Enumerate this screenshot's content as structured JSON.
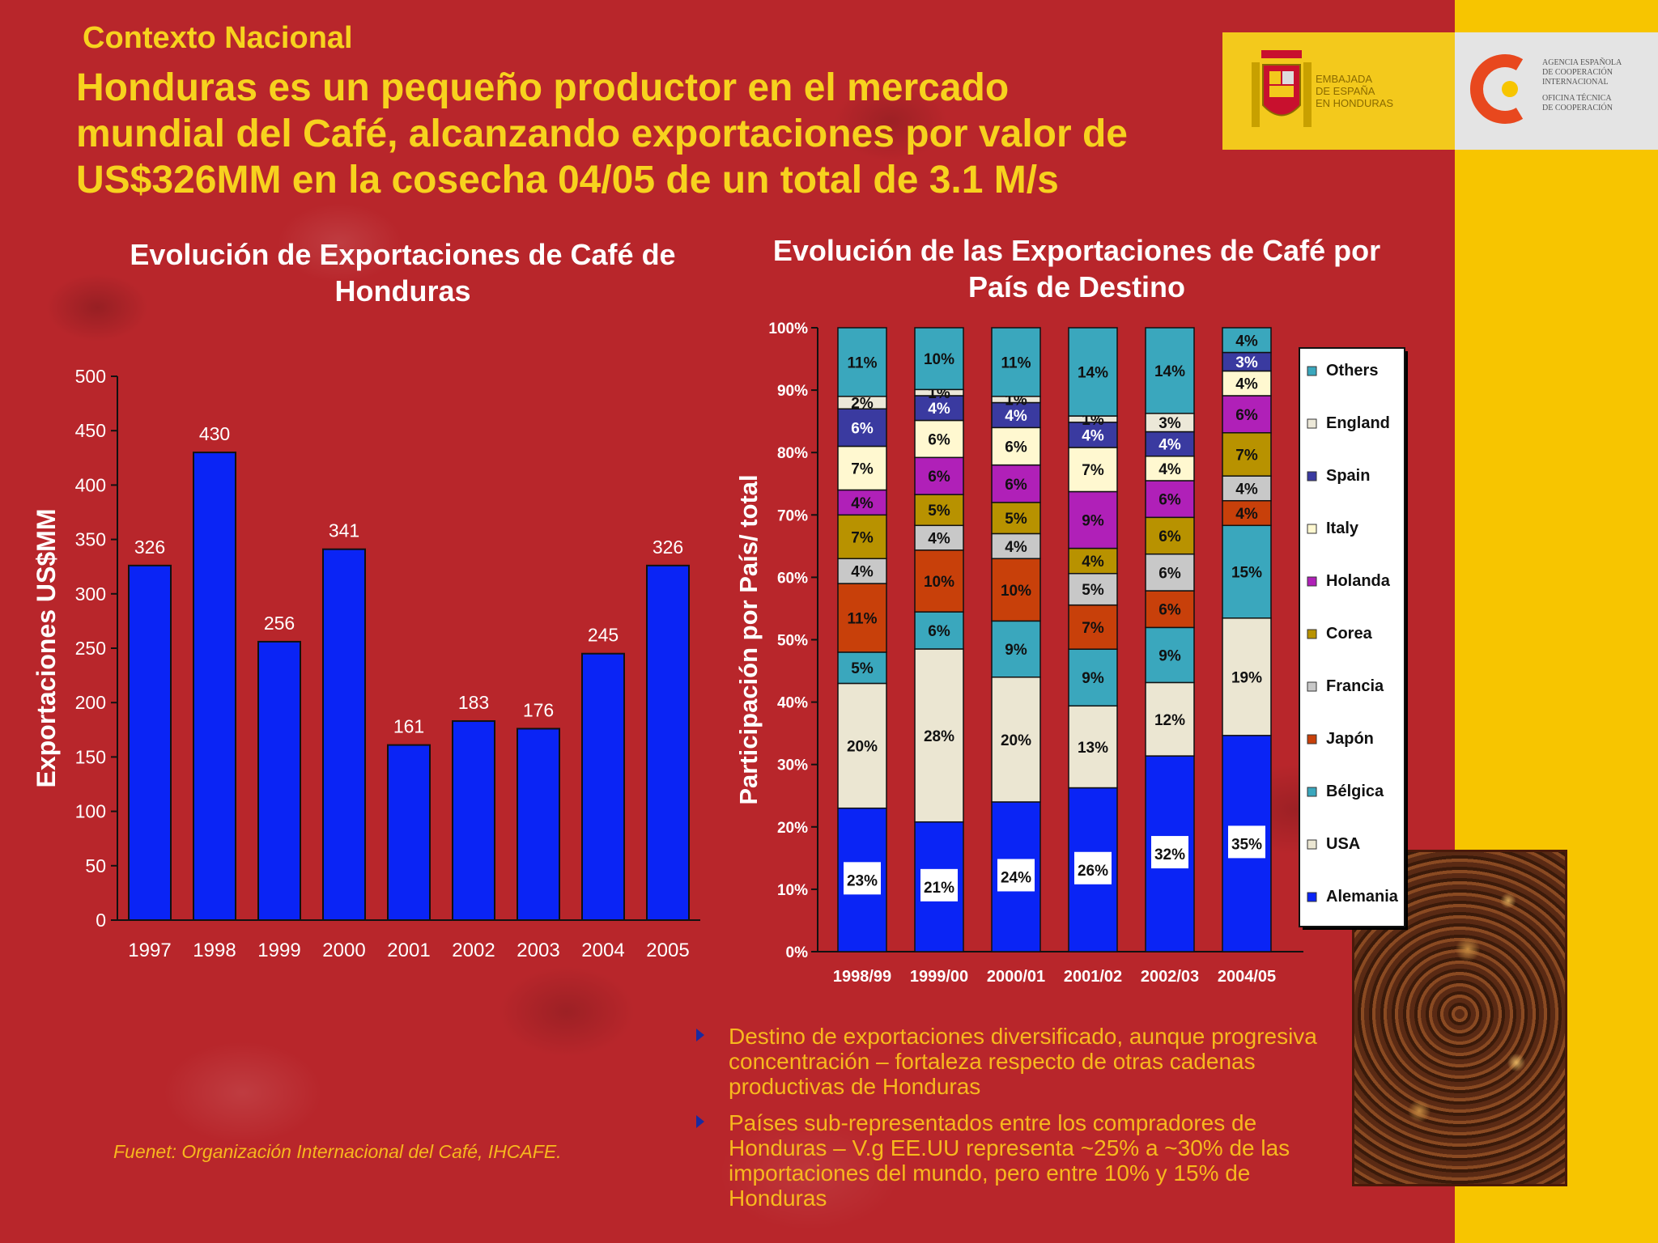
{
  "section_label": "Contexto Nacional",
  "headline": [
    "Honduras es un pequeño productor en el mercado",
    "mundial del Café, alcanzando exportaciones por valor de",
    "US$326MM en la cosecha 04/05 de un total de 3.1 M/s"
  ],
  "logos": {
    "embassy": [
      "EMBAJADA",
      "DE ESPAÑA",
      "EN HONDURAS"
    ],
    "aeci": [
      "AGENCIA ESPAÑOLA",
      "DE COOPERACIÓN",
      "INTERNACIONAL",
      "OFICINA TÉCNICA",
      "DE COOPERACIÓN"
    ]
  },
  "chart_data": [
    {
      "type": "bar",
      "title": "Evolución de Exportaciones de Café de Honduras",
      "xlabel": "",
      "ylabel": "Exportaciones US$MM",
      "ylim": [
        0,
        500
      ],
      "yticks": [
        0,
        50,
        100,
        150,
        200,
        250,
        300,
        350,
        400,
        450,
        500
      ],
      "categories": [
        "1997",
        "1998",
        "1999",
        "2000",
        "2001",
        "2002",
        "2003",
        "2004",
        "2005"
      ],
      "values": [
        326,
        430,
        256,
        341,
        161,
        183,
        176,
        245,
        326
      ],
      "bar_color": "#0a24f5"
    },
    {
      "type": "bar",
      "stacked": true,
      "title": "Evolución de las Exportaciones de Café por País de Destino",
      "ylabel": "Participación por País/ total",
      "ylim": [
        0,
        100
      ],
      "yticks": [
        "0%",
        "10%",
        "20%",
        "30%",
        "40%",
        "50%",
        "60%",
        "70%",
        "80%",
        "90%",
        "100%"
      ],
      "categories": [
        "1998/99",
        "1999/00",
        "2000/01",
        "2001/02",
        "2002/03",
        "2004/05"
      ],
      "legend_position": "right",
      "series": [
        {
          "name": "Alemania",
          "color": "#0a24f5",
          "values": [
            23,
            21,
            24,
            26,
            32,
            35
          ]
        },
        {
          "name": "USA",
          "color": "#ebe6d2",
          "values": [
            20,
            28,
            20,
            13,
            12,
            19
          ]
        },
        {
          "name": "Bélgica",
          "color": "#3aa7bd",
          "values": [
            5,
            6,
            9,
            9,
            9,
            15
          ]
        },
        {
          "name": "Japón",
          "color": "#c8400a",
          "values": [
            11,
            10,
            10,
            7,
            6,
            4
          ]
        },
        {
          "name": "Francia",
          "color": "#c8c8c8",
          "values": [
            4,
            4,
            4,
            5,
            6,
            4
          ]
        },
        {
          "name": "Corea",
          "color": "#b89200",
          "values": [
            7,
            5,
            5,
            4,
            6,
            7
          ]
        },
        {
          "name": "Holanda",
          "color": "#b020b8",
          "values": [
            4,
            6,
            6,
            9,
            6,
            6
          ]
        },
        {
          "name": "Italy",
          "color": "#fff8d0",
          "values": [
            7,
            6,
            6,
            7,
            4,
            4
          ]
        },
        {
          "name": "Spain",
          "color": "#3a3aa0",
          "values": [
            6,
            4,
            4,
            4,
            4,
            3
          ]
        },
        {
          "name": "England",
          "color": "#ece8d8",
          "values": [
            2,
            1,
            1,
            1,
            3,
            0
          ]
        },
        {
          "name": "Others",
          "color": "#3aa7bd",
          "values": [
            11,
            10,
            11,
            14,
            14,
            4
          ]
        }
      ]
    }
  ],
  "bullets": [
    "Destino de exportaciones diversificado, aunque progresiva concentración – fortaleza respecto de otras cadenas productivas de Honduras",
    "Países sub-representados entre los compradores de Honduras – V.g EE.UU representa ~25% a ~30% de las importaciones del mundo, pero entre 10% y 15% de Honduras"
  ],
  "source": "Fuenet: Organización Internacional del Café, IHCAFE."
}
